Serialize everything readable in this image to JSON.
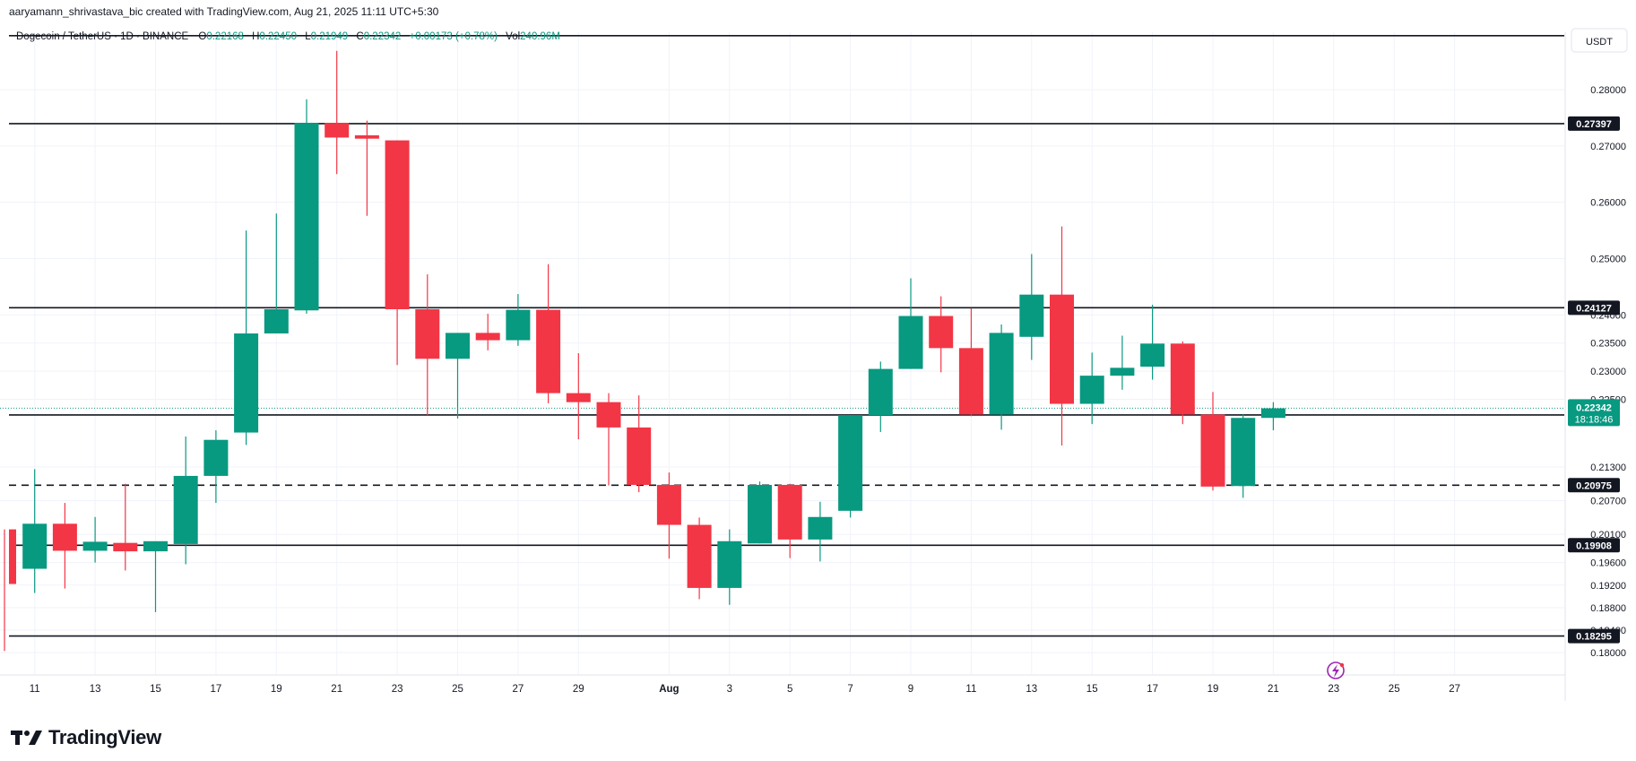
{
  "credit": "aaryamann_shrivastava_bic created with TradingView.com, Aug 21, 2025 11:11 UTC+5:30",
  "brand": "TradingView",
  "colors": {
    "up": "#089981",
    "down": "#F23645",
    "text": "#131722",
    "grid": "#F0F3FA",
    "axis_text": "#131722"
  },
  "legend": {
    "symbol": "Dogecoin / TetherUS · 1D · BINANCE",
    "o_label": "O",
    "o": "0.22168",
    "h_label": "H",
    "h": "0.22450",
    "l_label": "L",
    "l": "0.21949",
    "c_label": "C",
    "c": "0.22342",
    "change": "+0.00173 (+0.78%)",
    "vol_label": "Vol",
    "vol": "240.96M"
  },
  "currency": "USDT",
  "countdown": "18:18:46",
  "chart_data": {
    "type": "candlestick",
    "title": "Dogecoin / TetherUS · 1D · BINANCE",
    "ylim": [
      0.1762,
      0.2902
    ],
    "y_ticks": [
      "0.18000",
      "0.18400",
      "0.18800",
      "0.19200",
      "0.19600",
      "0.20100",
      "0.20700",
      "0.21300",
      "0.22500",
      "0.23000",
      "0.23500",
      "0.24000",
      "0.25000",
      "0.26000",
      "0.27000",
      "0.28000"
    ],
    "x_ticks": [
      "11",
      "13",
      "15",
      "17",
      "19",
      "21",
      "23",
      "25",
      "27",
      "29",
      "Aug",
      "3",
      "5",
      "7",
      "9",
      "11",
      "13",
      "15",
      "17",
      "19",
      "21",
      "23",
      "25",
      "27"
    ],
    "grid": true,
    "current_price": "0.22342",
    "horizontal_levels": [
      {
        "value": "0.28960",
        "style": "solid",
        "labeled": false
      },
      {
        "value": "0.27397",
        "style": "solid",
        "labeled": true
      },
      {
        "value": "0.24127",
        "style": "solid",
        "labeled": true
      },
      {
        "value": "0.22222",
        "style": "solid",
        "labeled": true
      },
      {
        "value": "0.20975",
        "style": "dashed",
        "labeled": true
      },
      {
        "value": "0.19908",
        "style": "solid",
        "labeled": true
      },
      {
        "value": "0.18295",
        "style": "solid",
        "labeled": true
      }
    ],
    "candles": [
      {
        "date": "Jul 10",
        "o": 0.2019,
        "h": 0.2019,
        "l": 0.1803,
        "c": 0.1922
      },
      {
        "date": "Jul 11",
        "o": 0.1949,
        "h": 0.2126,
        "l": 0.1906,
        "c": 0.2029
      },
      {
        "date": "Jul 12",
        "o": 0.2029,
        "h": 0.2066,
        "l": 0.1914,
        "c": 0.1981
      },
      {
        "date": "Jul 13",
        "o": 0.1981,
        "h": 0.2041,
        "l": 0.196,
        "c": 0.1997
      },
      {
        "date": "Jul 14",
        "o": 0.1995,
        "h": 0.21,
        "l": 0.1946,
        "c": 0.198
      },
      {
        "date": "Jul 15",
        "o": 0.198,
        "h": 0.1997,
        "l": 0.1872,
        "c": 0.1998
      },
      {
        "date": "Jul 16",
        "o": 0.1993,
        "h": 0.2184,
        "l": 0.1957,
        "c": 0.2114
      },
      {
        "date": "Jul 17",
        "o": 0.2114,
        "h": 0.2195,
        "l": 0.2066,
        "c": 0.2178
      },
      {
        "date": "Jul 18",
        "o": 0.2191,
        "h": 0.255,
        "l": 0.2169,
        "c": 0.2367
      },
      {
        "date": "Jul 19",
        "o": 0.2367,
        "h": 0.258,
        "l": 0.2367,
        "c": 0.241
      },
      {
        "date": "Jul 20",
        "o": 0.2408,
        "h": 0.2783,
        "l": 0.2402,
        "c": 0.2741
      },
      {
        "date": "Jul 21",
        "o": 0.2741,
        "h": 0.2869,
        "l": 0.265,
        "c": 0.2715
      },
      {
        "date": "Jul 22",
        "o": 0.2719,
        "h": 0.2745,
        "l": 0.2576,
        "c": 0.2713
      },
      {
        "date": "Jul 23",
        "o": 0.271,
        "h": 0.271,
        "l": 0.2311,
        "c": 0.241
      },
      {
        "date": "Jul 24",
        "o": 0.241,
        "h": 0.2472,
        "l": 0.2222,
        "c": 0.2322
      },
      {
        "date": "Jul 25",
        "o": 0.2322,
        "h": 0.2368,
        "l": 0.2216,
        "c": 0.2368
      },
      {
        "date": "Jul 26",
        "o": 0.2368,
        "h": 0.2402,
        "l": 0.2337,
        "c": 0.2355
      },
      {
        "date": "Jul 27",
        "o": 0.2355,
        "h": 0.2437,
        "l": 0.2345,
        "c": 0.2409
      },
      {
        "date": "Jul 28",
        "o": 0.2409,
        "h": 0.249,
        "l": 0.2243,
        "c": 0.2261
      },
      {
        "date": "Jul 29",
        "o": 0.2261,
        "h": 0.2332,
        "l": 0.2179,
        "c": 0.2245
      },
      {
        "date": "Jul 30",
        "o": 0.2245,
        "h": 0.2261,
        "l": 0.2097,
        "c": 0.22
      },
      {
        "date": "Jul 31",
        "o": 0.22,
        "h": 0.2257,
        "l": 0.2085,
        "c": 0.2098
      },
      {
        "date": "Aug 1",
        "o": 0.2098,
        "h": 0.212,
        "l": 0.1967,
        "c": 0.2027
      },
      {
        "date": "Aug 2",
        "o": 0.2027,
        "h": 0.204,
        "l": 0.1895,
        "c": 0.1915
      },
      {
        "date": "Aug 3",
        "o": 0.1915,
        "h": 0.2019,
        "l": 0.1885,
        "c": 0.1998
      },
      {
        "date": "Aug 4",
        "o": 0.1994,
        "h": 0.2104,
        "l": 0.1994,
        "c": 0.2098
      },
      {
        "date": "Aug 5",
        "o": 0.2098,
        "h": 0.21,
        "l": 0.1968,
        "c": 0.2001
      },
      {
        "date": "Aug 6",
        "o": 0.2001,
        "h": 0.2068,
        "l": 0.1962,
        "c": 0.2041
      },
      {
        "date": "Aug 7",
        "o": 0.2052,
        "h": 0.2222,
        "l": 0.204,
        "c": 0.2222
      },
      {
        "date": "Aug 8",
        "o": 0.2222,
        "h": 0.2317,
        "l": 0.2192,
        "c": 0.2304
      },
      {
        "date": "Aug 9",
        "o": 0.2304,
        "h": 0.2465,
        "l": 0.2304,
        "c": 0.2398
      },
      {
        "date": "Aug 10",
        "o": 0.2398,
        "h": 0.2433,
        "l": 0.2298,
        "c": 0.2341
      },
      {
        "date": "Aug 11",
        "o": 0.2341,
        "h": 0.2412,
        "l": 0.222,
        "c": 0.2223
      },
      {
        "date": "Aug 12",
        "o": 0.2223,
        "h": 0.2383,
        "l": 0.2196,
        "c": 0.2368
      },
      {
        "date": "Aug 13",
        "o": 0.2361,
        "h": 0.2508,
        "l": 0.232,
        "c": 0.2436
      },
      {
        "date": "Aug 14",
        "o": 0.2436,
        "h": 0.2557,
        "l": 0.2168,
        "c": 0.2242
      },
      {
        "date": "Aug 15",
        "o": 0.2242,
        "h": 0.2333,
        "l": 0.2206,
        "c": 0.2292
      },
      {
        "date": "Aug 16",
        "o": 0.2292,
        "h": 0.2363,
        "l": 0.2267,
        "c": 0.2306
      },
      {
        "date": "Aug 17",
        "o": 0.2308,
        "h": 0.2418,
        "l": 0.2285,
        "c": 0.2349
      },
      {
        "date": "Aug 18",
        "o": 0.2349,
        "h": 0.2353,
        "l": 0.2206,
        "c": 0.2223
      },
      {
        "date": "Aug 19",
        "o": 0.2223,
        "h": 0.2263,
        "l": 0.2088,
        "c": 0.2095
      },
      {
        "date": "Aug 20",
        "o": 0.2096,
        "h": 0.2224,
        "l": 0.2075,
        "c": 0.2217
      },
      {
        "date": "Aug 21",
        "o": 0.2217,
        "h": 0.2245,
        "l": 0.2195,
        "c": 0.2234
      }
    ]
  }
}
